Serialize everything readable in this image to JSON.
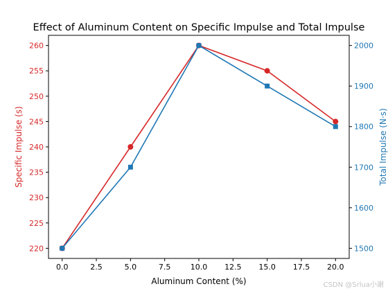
{
  "chart_data": {
    "type": "line",
    "title": "Effect of Aluminum Content on Specific Impulse and Total Impulse",
    "xlabel": "Aluminum Content (%)",
    "x": [
      0,
      5,
      10,
      15,
      20
    ],
    "x_ticks": [
      "0.0",
      "2.5",
      "5.0",
      "7.5",
      "10.0",
      "12.5",
      "15.0",
      "17.5",
      "20.0"
    ],
    "x_tick_values": [
      0,
      2.5,
      5,
      7.5,
      10,
      12.5,
      15,
      17.5,
      20
    ],
    "xlim": [
      -1,
      21
    ],
    "grid": false,
    "series": [
      {
        "name": "Specific Impulse (s)",
        "axis": "left",
        "color": "#d62728",
        "marker": "circle",
        "values": [
          220,
          240,
          260,
          255,
          245
        ]
      },
      {
        "name": "Total Impulse (N·s)",
        "axis": "right",
        "color": "#1f77b4",
        "marker": "square",
        "values": [
          1500,
          1700,
          2000,
          1900,
          1800
        ]
      }
    ],
    "left_axis": {
      "label": "Specific Impulse (s)",
      "color": "#d62728",
      "ylim": [
        218,
        262
      ],
      "ticks": [
        220,
        225,
        230,
        235,
        240,
        245,
        250,
        255,
        260
      ]
    },
    "right_axis": {
      "label": "Total Impulse (N·s)",
      "color": "#1f77b4",
      "ylim": [
        1475,
        2025
      ],
      "ticks": [
        1500,
        1600,
        1700,
        1800,
        1900,
        2000
      ]
    }
  },
  "watermark": "CSDN @Srlua小谢"
}
